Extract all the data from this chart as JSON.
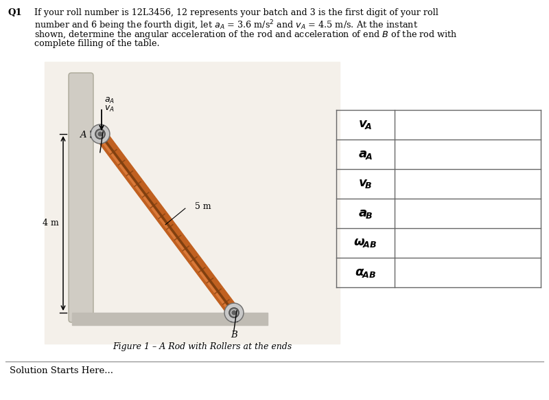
{
  "title_q": "Q1",
  "problem_lines": [
    "If your roll number is 12L3456, 12 represents your batch and 3 is the first digit of your roll",
    "number and 6 being the fourth digit, let $a_A$ = 3.6 m/s$^2$ and $v_A$ = 4.5 m/s. At the instant",
    "shown, determine the angular acceleration of the rod and acceleration of end $B$ of the rod with",
    "complete filling of the table."
  ],
  "figure_caption": "Figure 1 – A Rod with Rollers at the ends",
  "solution_text": "Solution Starts Here...",
  "table_labels": [
    "$v_A$",
    "$a_A$",
    "$v_B$",
    "$a_B$",
    "$\\omega_{AB}$",
    "$\\alpha_{AB}$"
  ],
  "rod_length_label": "5 m",
  "height_label": "4 m",
  "wall_color": "#c8c4bc",
  "wall_bg": "#dedad4",
  "rod_color_main": "#c06020",
  "rod_color_dark": "#804010",
  "rod_color_light": "#e08040",
  "floor_color": "#b0aca4",
  "roller_outer": "#909090",
  "roller_mid": "#606060",
  "roller_inner": "#404040",
  "table_line_color": "#666666",
  "text_color": "#000000",
  "bg_color": "#ffffff"
}
